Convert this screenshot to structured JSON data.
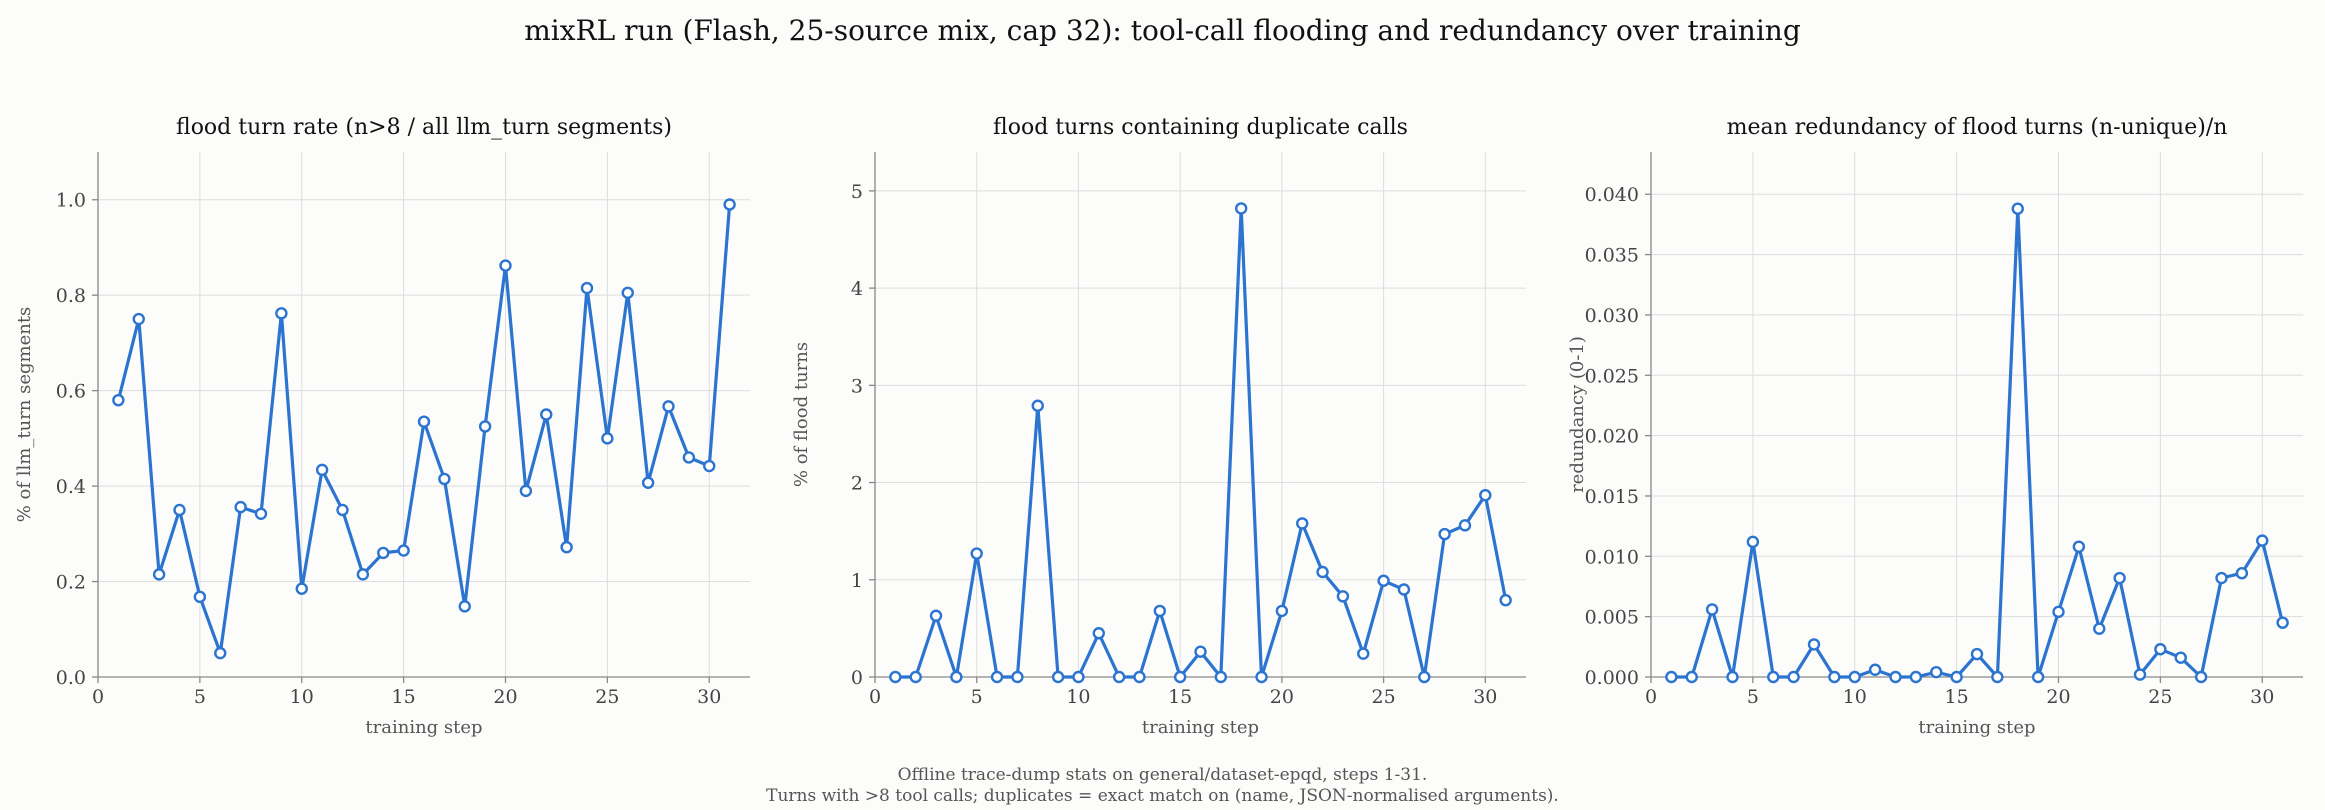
{
  "suptitle": "mixRL run  (Flash, 25-source mix, cap 32): tool-call flooding and redundancy over training",
  "footnote": {
    "line1": "Offline trace-dump stats on general/dataset-epqd, steps 1-31.",
    "line2": "Turns with >8 tool calls; duplicates = exact match on (name, JSON-normalised arguments)."
  },
  "colors": {
    "series": "#2b74d0",
    "grid": "#dddddd",
    "axis": "#888888",
    "marker_fill": "#ffffff"
  },
  "chart_data": [
    {
      "type": "line",
      "title": "flood turn rate  (n>8 / all llm_turn segments)",
      "xlabel": "training step",
      "ylabel": "% of llm_turn segments",
      "xlim": [
        0,
        32
      ],
      "ylim": [
        0,
        1.1
      ],
      "xticks": [
        0,
        5,
        10,
        15,
        20,
        25,
        30
      ],
      "yticks": [
        0.0,
        0.2,
        0.4,
        0.6,
        0.8,
        1.0
      ],
      "ytick_labels": [
        "0.0",
        "0.2",
        "0.4",
        "0.6",
        "0.8",
        "1.0"
      ],
      "grid": true,
      "x": [
        1,
        2,
        3,
        4,
        5,
        6,
        7,
        8,
        9,
        10,
        11,
        12,
        13,
        14,
        15,
        16,
        17,
        18,
        19,
        20,
        21,
        22,
        23,
        24,
        25,
        26,
        27,
        28,
        29,
        30,
        31
      ],
      "y": [
        0.58,
        0.75,
        0.215,
        0.35,
        0.168,
        0.05,
        0.356,
        0.342,
        0.762,
        0.185,
        0.434,
        0.35,
        0.215,
        0.26,
        0.265,
        0.535,
        0.415,
        0.148,
        0.525,
        0.862,
        0.39,
        0.55,
        0.272,
        0.815,
        0.5,
        0.805,
        0.407,
        0.567,
        0.46,
        0.442,
        0.99
      ]
    },
    {
      "type": "line",
      "title": "flood turns containing duplicate calls",
      "xlabel": "training step",
      "ylabel": "% of flood turns",
      "xlim": [
        0,
        32
      ],
      "ylim": [
        0,
        5.4
      ],
      "xticks": [
        0,
        5,
        10,
        15,
        20,
        25,
        30
      ],
      "yticks": [
        0,
        1,
        2,
        3,
        4,
        5
      ],
      "ytick_labels": [
        "0",
        "1",
        "2",
        "3",
        "4",
        "5"
      ],
      "grid": true,
      "x": [
        1,
        2,
        3,
        4,
        5,
        6,
        7,
        8,
        9,
        10,
        11,
        12,
        13,
        14,
        15,
        16,
        17,
        18,
        19,
        20,
        21,
        22,
        23,
        24,
        25,
        26,
        27,
        28,
        29,
        30,
        31
      ],
      "y": [
        0,
        0,
        0.63,
        0,
        1.27,
        0,
        0,
        2.79,
        0,
        0,
        0.45,
        0,
        0,
        0.68,
        0,
        0.26,
        0,
        4.82,
        0,
        0.68,
        1.58,
        1.08,
        0.83,
        0.24,
        0.99,
        0.9,
        0,
        1.47,
        1.56,
        1.87,
        0.79
      ]
    },
    {
      "type": "line",
      "title": "mean redundancy of flood turns  (n-unique)/n",
      "xlabel": "training step",
      "ylabel": "redundancy (0-1)",
      "xlim": [
        0,
        32
      ],
      "ylim": [
        0,
        0.0435
      ],
      "xticks": [
        0,
        5,
        10,
        15,
        20,
        25,
        30
      ],
      "yticks": [
        0,
        0.005,
        0.01,
        0.015,
        0.02,
        0.025,
        0.03,
        0.035,
        0.04
      ],
      "ytick_labels": [
        "0.000",
        "0.005",
        "0.010",
        "0.015",
        "0.020",
        "0.025",
        "0.030",
        "0.035",
        "0.040"
      ],
      "grid": true,
      "x": [
        1,
        2,
        3,
        4,
        5,
        6,
        7,
        8,
        9,
        10,
        11,
        12,
        13,
        14,
        15,
        16,
        17,
        18,
        19,
        20,
        21,
        22,
        23,
        24,
        25,
        26,
        27,
        28,
        29,
        30,
        31
      ],
      "y": [
        0,
        0,
        0.0056,
        0,
        0.0112,
        0,
        0,
        0.0027,
        0,
        0,
        0.0006,
        0,
        0,
        0.0004,
        0,
        0.0019,
        0,
        0.0388,
        0,
        0.0054,
        0.0108,
        0.004,
        0.0082,
        0.0002,
        0.0023,
        0.0016,
        0,
        0.0082,
        0.0086,
        0.0113,
        0.0045
      ]
    }
  ]
}
